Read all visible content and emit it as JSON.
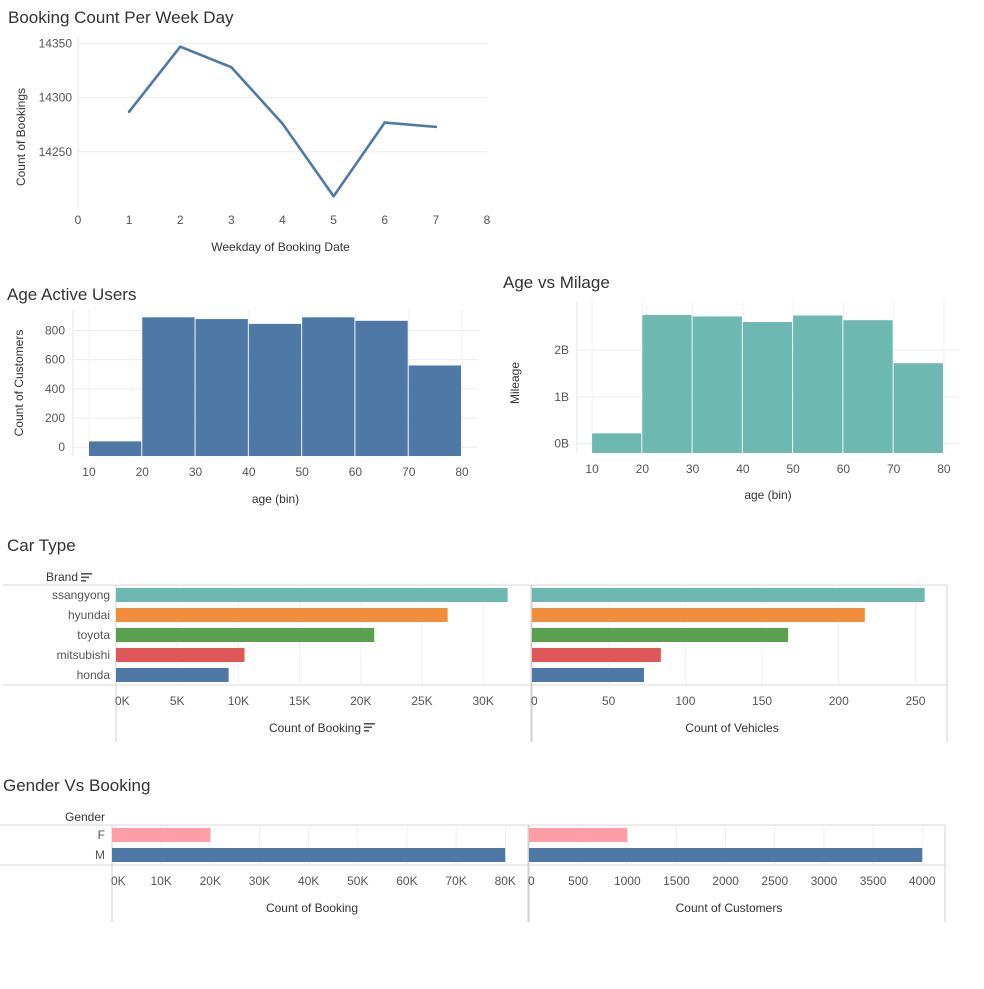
{
  "titles": {
    "booking_weekday": "Booking Count Per Week Day",
    "age_active": "Age Active Users",
    "age_mileage": "Age vs Milage",
    "car_type": "Car Type",
    "gender_booking": "Gender Vs Booking"
  },
  "car_type_header": "Brand",
  "gender_header": "Gender",
  "chart_data": [
    {
      "id": "booking_weekday",
      "type": "line",
      "title": "Booking Count Per Week Day",
      "xlabel": "Weekday of Booking Date",
      "ylabel": "Count of Bookings",
      "x": [
        1,
        2,
        3,
        4,
        5,
        6,
        7
      ],
      "values": [
        14287,
        14347,
        14328,
        14276,
        14209,
        14277,
        14273
      ],
      "xlim": [
        0,
        8
      ],
      "ylim": [
        14200,
        14355
      ],
      "xticks": [
        "0",
        "1",
        "2",
        "3",
        "4",
        "5",
        "6",
        "7",
        "8"
      ],
      "yticks": [
        {
          "v": 14250,
          "label": "14250"
        },
        {
          "v": 14300,
          "label": "14300"
        },
        {
          "v": 14350,
          "label": "14350"
        }
      ],
      "color": "#4e79a7"
    },
    {
      "id": "age_active",
      "type": "bar",
      "title": "Age Active Users",
      "xlabel": "age (bin)",
      "ylabel": "Count of Customers",
      "bins": [
        [
          10,
          20
        ],
        [
          20,
          30
        ],
        [
          30,
          40
        ],
        [
          40,
          50
        ],
        [
          50,
          60
        ],
        [
          60,
          70
        ],
        [
          70,
          80
        ]
      ],
      "values": [
        40,
        890,
        878,
        845,
        890,
        866,
        560
      ],
      "xlim": [
        7,
        83
      ],
      "ylim": [
        -60,
        940
      ],
      "xticks": [
        "10",
        "20",
        "30",
        "40",
        "50",
        "60",
        "70",
        "80"
      ],
      "yticks": [
        {
          "v": 0,
          "label": "0"
        },
        {
          "v": 200,
          "label": "200"
        },
        {
          "v": 400,
          "label": "400"
        },
        {
          "v": 600,
          "label": "600"
        },
        {
          "v": 800,
          "label": "800"
        }
      ],
      "color": "#4e79a7"
    },
    {
      "id": "age_mileage",
      "type": "bar",
      "title": "Age vs Milage",
      "xlabel": "age (bin)",
      "ylabel": "Mileage",
      "bins": [
        [
          10,
          20
        ],
        [
          20,
          30
        ],
        [
          30,
          40
        ],
        [
          40,
          50
        ],
        [
          50,
          60
        ],
        [
          60,
          70
        ],
        [
          70,
          80
        ]
      ],
      "values": [
        0.22,
        2.75,
        2.72,
        2.6,
        2.74,
        2.64,
        1.72
      ],
      "value_unit": "B",
      "xlim": [
        7,
        83
      ],
      "ylim": [
        -0.2,
        3.05
      ],
      "xticks": [
        "10",
        "20",
        "30",
        "40",
        "50",
        "60",
        "70",
        "80"
      ],
      "yticks": [
        {
          "v": 0,
          "label": "0B"
        },
        {
          "v": 1,
          "label": "1B"
        },
        {
          "v": 2,
          "label": "2B"
        }
      ],
      "color": "#6db8b0"
    },
    {
      "id": "car_type_booking",
      "type": "bar",
      "orientation": "horizontal",
      "xlabel": "Count of Booking",
      "categories": [
        "ssangyong",
        "hyundai",
        "toyota",
        "mitsubishi",
        "honda"
      ],
      "values": [
        32000,
        27100,
        21100,
        10500,
        9200
      ],
      "colors": [
        "#6db8b0",
        "#f28e3b",
        "#59a14f",
        "#e15759",
        "#4e79a7"
      ],
      "xlim": [
        0,
        33500
      ],
      "xticks": [
        {
          "v": 0,
          "label": "0K"
        },
        {
          "v": 5000,
          "label": "5K"
        },
        {
          "v": 10000,
          "label": "10K"
        },
        {
          "v": 15000,
          "label": "15K"
        },
        {
          "v": 20000,
          "label": "20K"
        },
        {
          "v": 25000,
          "label": "25K"
        },
        {
          "v": 30000,
          "label": "30K"
        }
      ]
    },
    {
      "id": "car_type_vehicles",
      "type": "bar",
      "orientation": "horizontal",
      "xlabel": "Count of Vehicles",
      "categories": [
        "ssangyong",
        "hyundai",
        "toyota",
        "mitsubishi",
        "honda"
      ],
      "values": [
        256,
        217,
        167,
        84,
        73
      ],
      "colors": [
        "#6db8b0",
        "#f28e3b",
        "#59a14f",
        "#e15759",
        "#4e79a7"
      ],
      "xlim": [
        0,
        266
      ],
      "xticks": [
        {
          "v": 0,
          "label": "0"
        },
        {
          "v": 50,
          "label": "50"
        },
        {
          "v": 100,
          "label": "100"
        },
        {
          "v": 150,
          "label": "150"
        },
        {
          "v": 200,
          "label": "200"
        },
        {
          "v": 250,
          "label": "250"
        }
      ]
    },
    {
      "id": "gender_booking",
      "type": "bar",
      "orientation": "horizontal",
      "xlabel": "Count of Booking",
      "categories": [
        "F",
        "M"
      ],
      "values": [
        20000,
        80000
      ],
      "colors": [
        "#ff9da7",
        "#4e79a7"
      ],
      "xlim": [
        0,
        83000
      ],
      "xticks": [
        {
          "v": 0,
          "label": "0K"
        },
        {
          "v": 10000,
          "label": "10K"
        },
        {
          "v": 20000,
          "label": "20K"
        },
        {
          "v": 30000,
          "label": "30K"
        },
        {
          "v": 40000,
          "label": "40K"
        },
        {
          "v": 50000,
          "label": "50K"
        },
        {
          "v": 60000,
          "label": "60K"
        },
        {
          "v": 70000,
          "label": "70K"
        },
        {
          "v": 80000,
          "label": "80K"
        }
      ]
    },
    {
      "id": "gender_customers",
      "type": "bar",
      "orientation": "horizontal",
      "xlabel": "Count of Customers",
      "categories": [
        "F",
        "M"
      ],
      "values": [
        1000,
        4000
      ],
      "colors": [
        "#ff9da7",
        "#4e79a7"
      ],
      "xlim": [
        0,
        4150
      ],
      "xticks": [
        {
          "v": 0,
          "label": "0"
        },
        {
          "v": 500,
          "label": "500"
        },
        {
          "v": 1000,
          "label": "1000"
        },
        {
          "v": 1500,
          "label": "1500"
        },
        {
          "v": 2000,
          "label": "2000"
        },
        {
          "v": 2500,
          "label": "2500"
        },
        {
          "v": 3000,
          "label": "3000"
        },
        {
          "v": 3500,
          "label": "3500"
        },
        {
          "v": 4000,
          "label": "4000"
        }
      ]
    }
  ]
}
